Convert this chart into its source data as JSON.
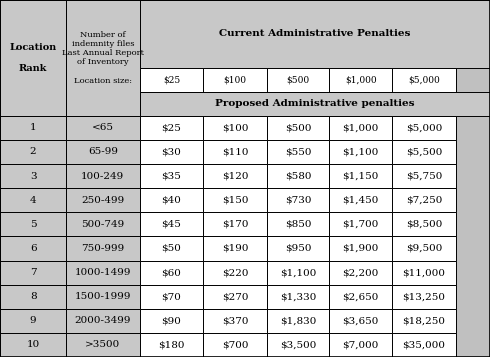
{
  "header_rank_text": "Location\n\nRank",
  "header_size_text": "Number of\nindemnity files\nLast Annual Report\nof Inventory\n\nLocation size:",
  "header_current": "Current Administrative Penalties",
  "header_proposed": "Proposed Administrative penalties",
  "penalty_cols": [
    "$25",
    "$100",
    "$500",
    "$1,000",
    "$5,000"
  ],
  "rows": [
    [
      "1",
      "<65",
      "$25",
      "$100",
      "$500",
      "$1,000",
      "$5,000"
    ],
    [
      "2",
      "65-99",
      "$30",
      "$110",
      "$550",
      "$1,100",
      "$5,500"
    ],
    [
      "3",
      "100-249",
      "$35",
      "$120",
      "$580",
      "$1,150",
      "$5,750"
    ],
    [
      "4",
      "250-499",
      "$40",
      "$150",
      "$730",
      "$1,450",
      "$7,250"
    ],
    [
      "5",
      "500-749",
      "$45",
      "$170",
      "$850",
      "$1,700",
      "$8,500"
    ],
    [
      "6",
      "750-999",
      "$50",
      "$190",
      "$950",
      "$1,900",
      "$9,500"
    ],
    [
      "7",
      "1000-1499",
      "$60",
      "$220",
      "$1,100",
      "$2,200",
      "$11,000"
    ],
    [
      "8",
      "1500-1999",
      "$70",
      "$270",
      "$1,330",
      "$2,650",
      "$13,250"
    ],
    [
      "9",
      "2000-3499",
      "$90",
      "$370",
      "$1,830",
      "$3,650",
      "$18,250"
    ],
    [
      "10",
      ">3500",
      "$180",
      "$700",
      "$3,500",
      "$7,000",
      "$35,000"
    ]
  ],
  "bg_color": "#c0c0c0",
  "cell_gray": "#c8c8c8",
  "cell_white": "#ffffff",
  "border_color": "#000000",
  "col_boundaries": [
    0.0,
    0.135,
    0.285,
    0.415,
    0.545,
    0.672,
    0.8,
    0.93,
    1.0
  ],
  "row_heights_rel": [
    2.8,
    1.0,
    1.0,
    1.0,
    1.0,
    1.0,
    1.0,
    1.0,
    1.0,
    1.0,
    1.0,
    1.0,
    1.0
  ],
  "data_fontsize": 7.5,
  "header_fontsize": 7.5,
  "subheader_fontsize": 6.5,
  "size_fontsize": 6.0
}
